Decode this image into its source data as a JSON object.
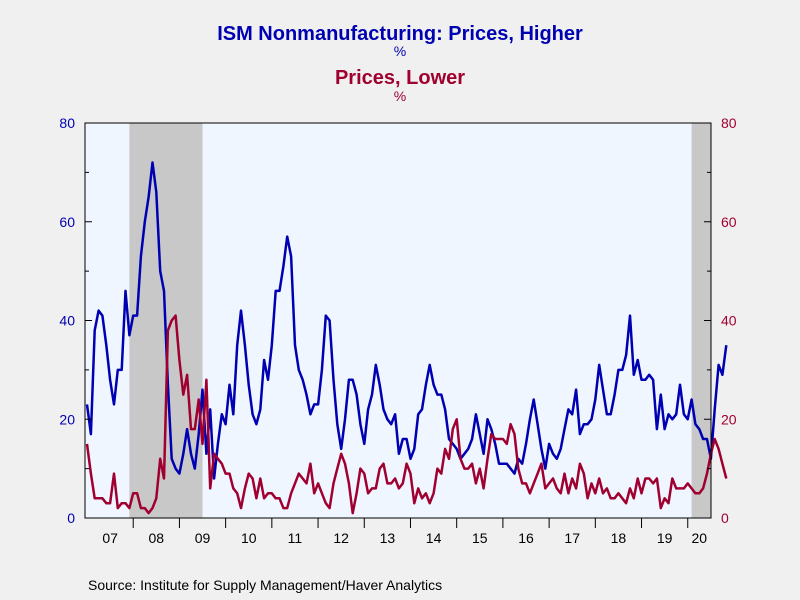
{
  "chart_data": {
    "type": "line",
    "title_line1": "ISM Nonmanufacturing: Prices, Higher",
    "title_line1_unit": "%",
    "title_line2": "Prices, Lower",
    "title_line2_unit": "%",
    "source": "Source:  Institute for Supply Management/Haver Analytics",
    "x_start": "2007-01",
    "x_end": "2020-06",
    "x_tick_labels": [
      "07",
      "08",
      "09",
      "10",
      "11",
      "12",
      "13",
      "14",
      "15",
      "16",
      "17",
      "18",
      "19",
      "20"
    ],
    "ylim": [
      0,
      80
    ],
    "y_ticks": [
      "0",
      "20",
      "40",
      "60",
      "80"
    ],
    "grid": false,
    "recessions": [
      {
        "start": "2007-12",
        "end": "2009-06"
      },
      {
        "start": "2020-02",
        "end": "2020-06"
      }
    ],
    "colors": {
      "higher": "#0000b3",
      "lower": "#a00030",
      "recession": "#c8c8c8",
      "plot_bg": "#f0f6ff",
      "left_axis": "#0000b3",
      "right_axis": "#a00030"
    },
    "series": [
      {
        "name": "Prices, Higher",
        "axis": "left",
        "values": [
          23,
          17,
          38,
          42,
          41,
          35,
          28,
          23,
          30,
          30,
          46,
          37,
          41,
          41,
          53,
          60,
          65,
          72,
          66,
          50,
          46,
          27,
          12,
          10,
          9,
          13,
          18,
          13,
          10,
          17,
          26,
          13,
          22,
          8,
          15,
          21,
          19,
          27,
          21,
          35,
          42,
          35,
          27,
          21,
          19,
          22,
          32,
          28,
          35,
          46,
          46,
          51,
          57,
          53,
          35,
          30,
          28,
          25,
          21,
          23,
          23,
          30,
          41,
          40,
          28,
          19,
          14,
          20,
          28,
          28,
          25,
          19,
          15,
          22,
          25,
          31,
          27,
          22,
          20,
          19,
          21,
          13,
          16,
          16,
          12,
          14,
          21,
          22,
          27,
          31,
          27,
          25,
          25,
          22,
          16,
          15,
          14,
          12,
          13,
          14,
          16,
          21,
          17,
          13,
          20,
          18,
          15,
          11,
          11,
          11,
          10,
          9,
          12,
          11,
          15,
          20,
          24,
          19,
          14,
          10,
          15,
          13,
          12,
          14,
          18,
          22,
          21,
          26,
          17,
          19,
          19,
          20,
          24,
          31,
          26,
          21,
          21,
          25,
          30,
          30,
          33,
          41,
          29,
          32,
          28,
          28,
          29,
          28,
          18,
          25,
          18,
          21,
          20,
          21,
          27,
          21,
          20,
          24,
          19,
          18,
          16,
          16,
          12,
          22,
          31,
          29,
          35
        ]
      },
      {
        "name": "Prices, Lower",
        "axis": "right",
        "values": [
          15,
          9,
          4,
          4,
          4,
          3,
          3,
          9,
          2,
          3,
          3,
          2,
          5,
          5,
          2,
          2,
          1,
          2,
          4,
          12,
          8,
          38,
          40,
          41,
          32,
          25,
          29,
          18,
          18,
          24,
          15,
          28,
          6,
          13,
          12,
          11,
          9,
          9,
          6,
          5,
          2,
          6,
          9,
          8,
          4,
          8,
          4,
          5,
          5,
          4,
          4,
          2,
          2,
          5,
          7,
          9,
          8,
          7,
          11,
          5,
          7,
          5,
          3,
          2,
          7,
          10,
          13,
          11,
          7,
          1,
          5,
          10,
          9,
          5,
          6,
          6,
          10,
          11,
          7,
          7,
          8,
          6,
          7,
          11,
          9,
          3,
          6,
          4,
          5,
          3,
          5,
          10,
          9,
          14,
          12,
          18,
          20,
          12,
          10,
          10,
          11,
          7,
          10,
          6,
          12,
          17,
          16,
          16,
          16,
          15,
          19,
          17,
          10,
          7,
          7,
          5,
          7,
          9,
          11,
          6,
          7,
          8,
          6,
          5,
          9,
          5,
          8,
          6,
          11,
          9,
          4,
          7,
          5,
          8,
          5,
          6,
          4,
          4,
          5,
          4,
          3,
          6,
          4,
          8,
          5,
          8,
          8,
          7,
          8,
          2,
          4,
          3,
          8,
          6,
          6,
          6,
          7,
          6,
          5,
          5,
          6,
          9,
          13,
          16,
          14,
          11,
          8
        ]
      }
    ]
  }
}
